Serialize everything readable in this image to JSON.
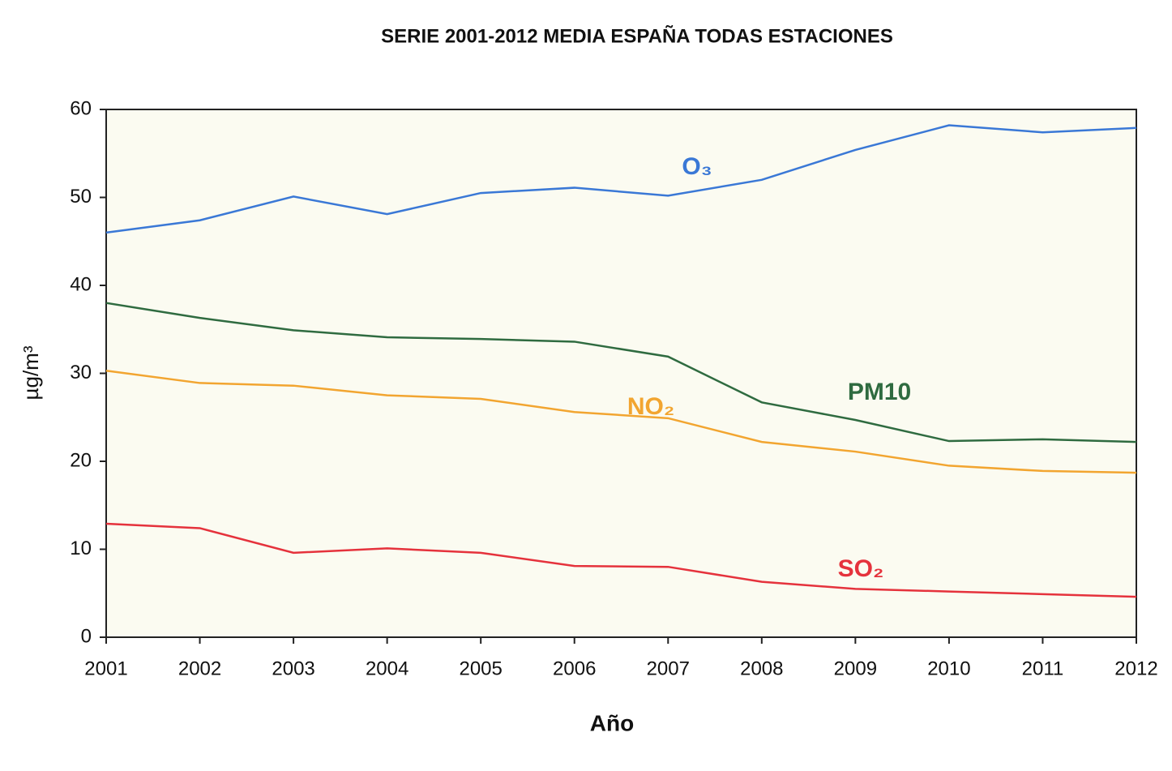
{
  "chart_data": {
    "type": "line",
    "title": "SERIE 2001-2012 MEDIA ESPAÑA TODAS ESTACIONES",
    "xlabel": "Año",
    "ylabel": "µg/m³",
    "x": [
      2001,
      2002,
      2003,
      2004,
      2005,
      2006,
      2007,
      2008,
      2009,
      2010,
      2011,
      2012
    ],
    "xlim": [
      2001,
      2012
    ],
    "xticks": [
      2001,
      2002,
      2003,
      2004,
      2005,
      2006,
      2007,
      2008,
      2009,
      2010,
      2011,
      2012
    ],
    "ylim": [
      0,
      60
    ],
    "yticks": [
      0,
      10,
      20,
      30,
      40,
      50,
      60
    ],
    "grid": false,
    "series": [
      {
        "name": "O₃",
        "color": "#3a78d6",
        "values": [
          46.0,
          47.4,
          50.1,
          48.1,
          50.5,
          51.1,
          50.2,
          52.0,
          55.4,
          58.2,
          57.4,
          57.9
        ]
      },
      {
        "name": "PM10",
        "color": "#2f6b40",
        "values": [
          38.0,
          36.3,
          34.9,
          34.1,
          33.9,
          33.6,
          31.9,
          26.7,
          24.7,
          22.3,
          22.5,
          22.2
        ]
      },
      {
        "name": "NO₂",
        "color": "#f2a530",
        "values": [
          30.3,
          28.9,
          28.6,
          27.5,
          27.1,
          25.6,
          24.9,
          22.2,
          21.1,
          19.5,
          18.9,
          18.7
        ]
      },
      {
        "name": "SO₂",
        "color": "#e5323c",
        "values": [
          12.9,
          12.4,
          9.6,
          10.1,
          9.6,
          8.1,
          8.0,
          6.3,
          5.5,
          5.2,
          4.9,
          4.6
        ]
      }
    ]
  }
}
